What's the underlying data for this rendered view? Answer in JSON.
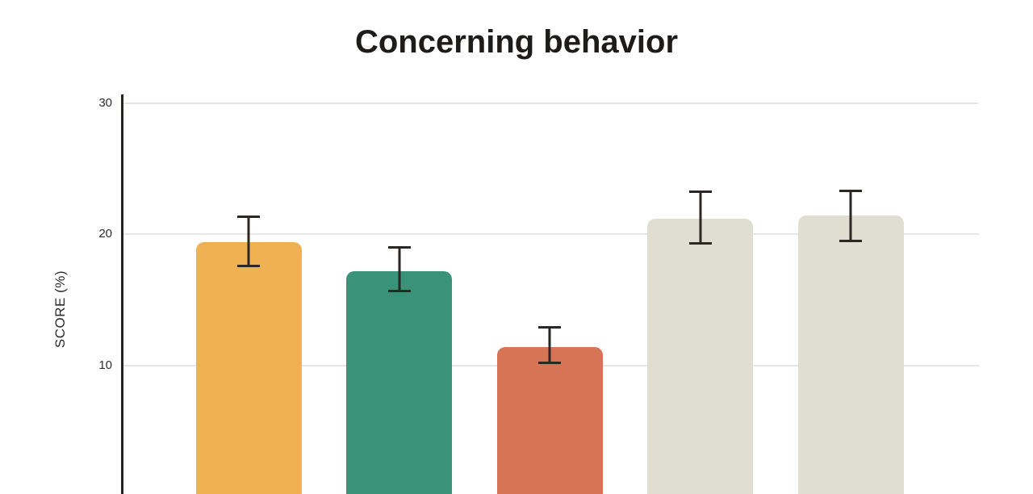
{
  "chart_data": {
    "type": "bar",
    "title": "Concerning behavior",
    "xlabel": "",
    "ylabel": "SCORE (%)",
    "categories": [
      "",
      "",
      "",
      "",
      ""
    ],
    "values": [
      19.4,
      17.2,
      11.4,
      21.2,
      21.4
    ],
    "error_upper": [
      21.4,
      19.1,
      13.0,
      23.3,
      23.4
    ],
    "error_lower": [
      17.5,
      15.6,
      10.1,
      19.2,
      19.4
    ],
    "bar_colors": [
      "#F0B152",
      "#3A9278",
      "#D77455",
      "#E0DDD1",
      "#E0DDD1"
    ],
    "yticks": [
      10,
      20,
      30
    ],
    "ylim_visible": [
      0,
      30
    ],
    "grid": true,
    "legend": false,
    "x_axis_labels_visible": false,
    "colors": {
      "title": "#1D1C1A",
      "axis": "#26231E",
      "grid": "#E7E6E4",
      "tick_label": "#2E2E2E",
      "error_bar": "#2B2824",
      "background": "#FFFFFF"
    }
  }
}
